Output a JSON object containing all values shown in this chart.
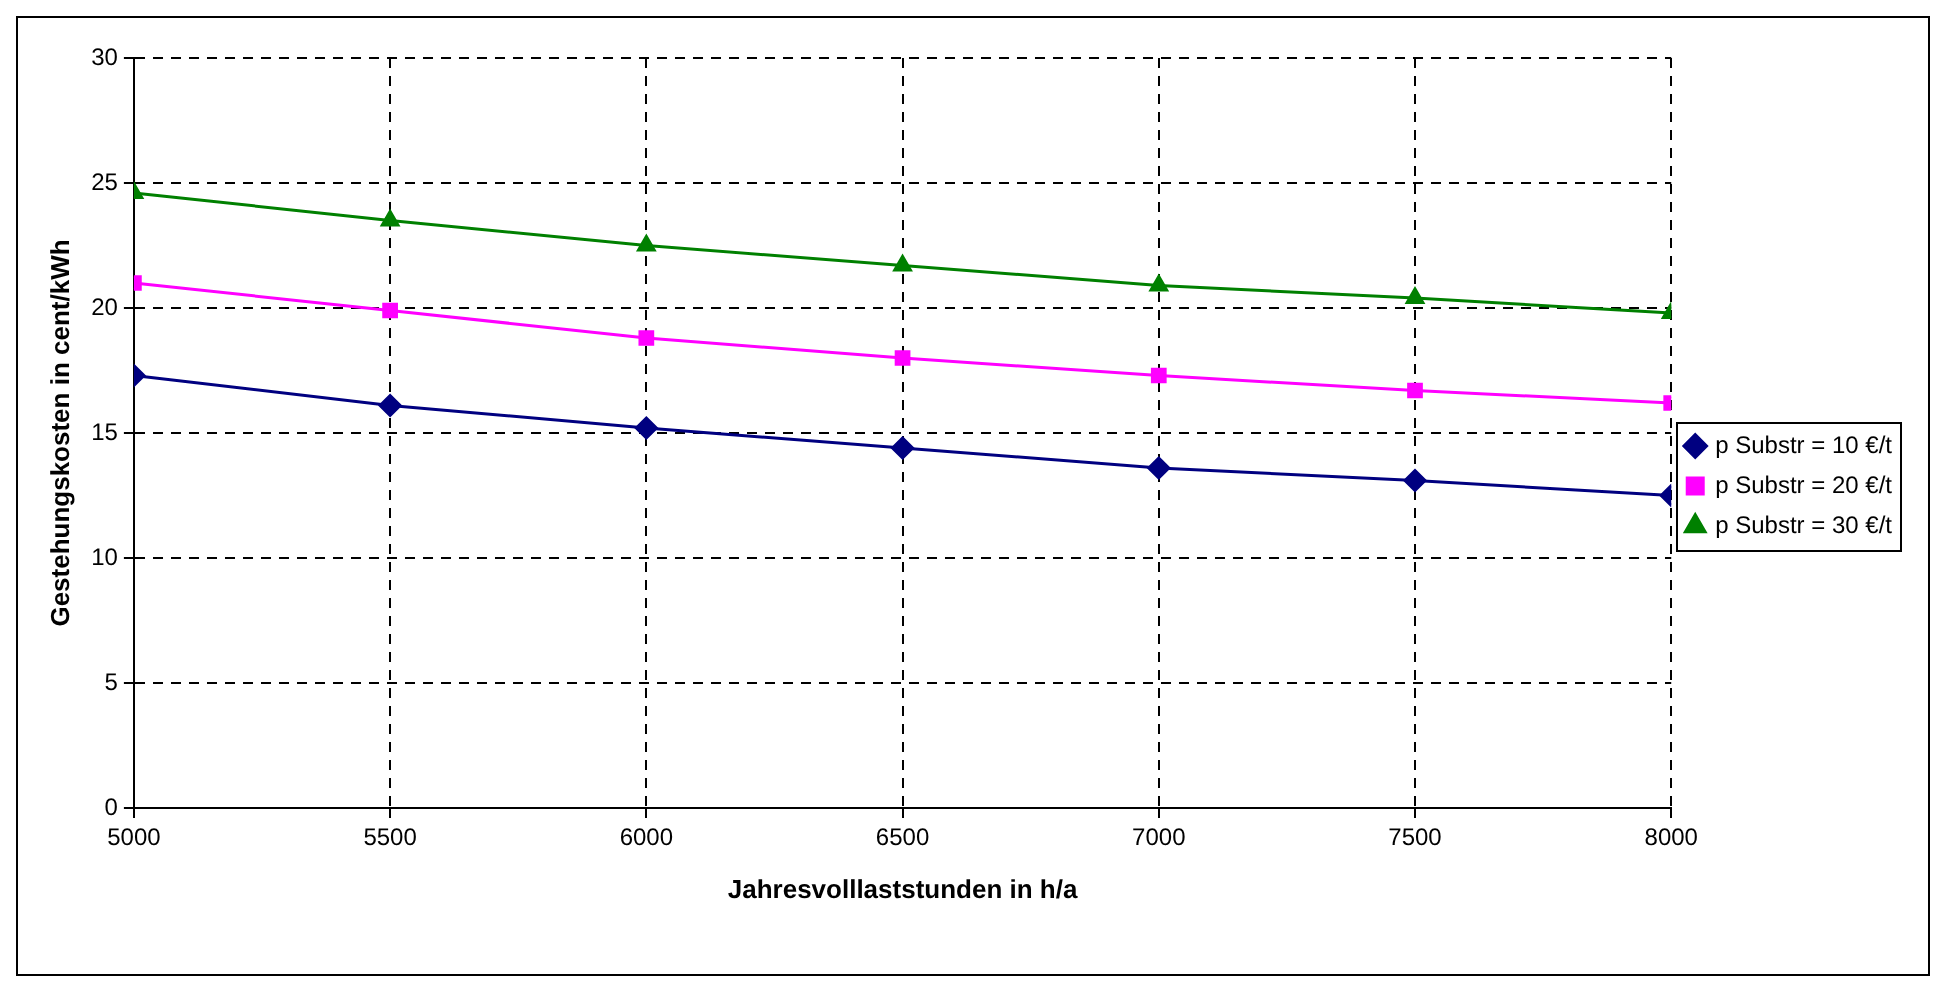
{
  "chart_data": {
    "type": "line",
    "xlabel": "Jahresvolllaststunden in h/a",
    "ylabel": "Gestehungskosten in cent/kWh",
    "x": [
      5000,
      5500,
      6000,
      6500,
      7000,
      7500,
      8000
    ],
    "series": [
      {
        "name": "p Substr = 10 €/t",
        "color": "#000080",
        "marker": "diamond",
        "values": [
          17.3,
          16.1,
          15.2,
          14.4,
          13.6,
          13.1,
          12.5
        ]
      },
      {
        "name": "p Substr = 20 €/t",
        "color": "#ff00ff",
        "marker": "square",
        "values": [
          21.0,
          19.9,
          18.8,
          18.0,
          17.3,
          16.7,
          16.2
        ]
      },
      {
        "name": "p Substr = 30 €/t",
        "color": "#008000",
        "marker": "triangle",
        "values": [
          24.6,
          23.5,
          22.5,
          21.7,
          20.9,
          20.4,
          19.8
        ]
      }
    ],
    "xlim": [
      5000,
      8000
    ],
    "xticks": [
      5000,
      5500,
      6000,
      6500,
      7000,
      7500,
      8000
    ],
    "ylim": [
      0,
      30
    ],
    "yticks": [
      0,
      5,
      10,
      15,
      20,
      25,
      30
    ],
    "grid": true,
    "legend": "right",
    "line_style": "solid"
  }
}
